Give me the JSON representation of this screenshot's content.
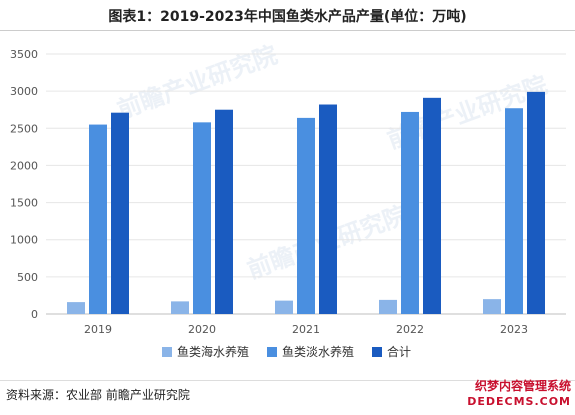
{
  "title": "图表1：2019-2023年中国鱼类水产品产量(单位：万吨)",
  "source": "资料来源：农业部 前瞻产业研究院",
  "watermark": {
    "line1": "织梦内容管理系统",
    "line2": "DEDECMS.COM",
    "brand": "前瞻产业研究院"
  },
  "colors": {
    "series": [
      "#8ab4e8",
      "#4a8fe0",
      "#1a5bc0"
    ],
    "axis_text": "#555555",
    "grid": "#e6e6e6"
  },
  "chart_data": {
    "type": "bar",
    "categories": [
      "2019",
      "2020",
      "2021",
      "2022",
      "2023"
    ],
    "series": [
      {
        "name": "鱼类海水养殖",
        "values": [
          160,
          170,
          180,
          190,
          200
        ]
      },
      {
        "name": "鱼类淡水养殖",
        "values": [
          2550,
          2580,
          2640,
          2720,
          2770
        ]
      },
      {
        "name": "合计",
        "values": [
          2710,
          2750,
          2820,
          2910,
          2990
        ]
      }
    ],
    "ylim": [
      0,
      3500
    ],
    "yticks": [
      0,
      500,
      1000,
      1500,
      2000,
      2500,
      3000,
      3500
    ],
    "grid": true,
    "legend": "bottom-center"
  }
}
